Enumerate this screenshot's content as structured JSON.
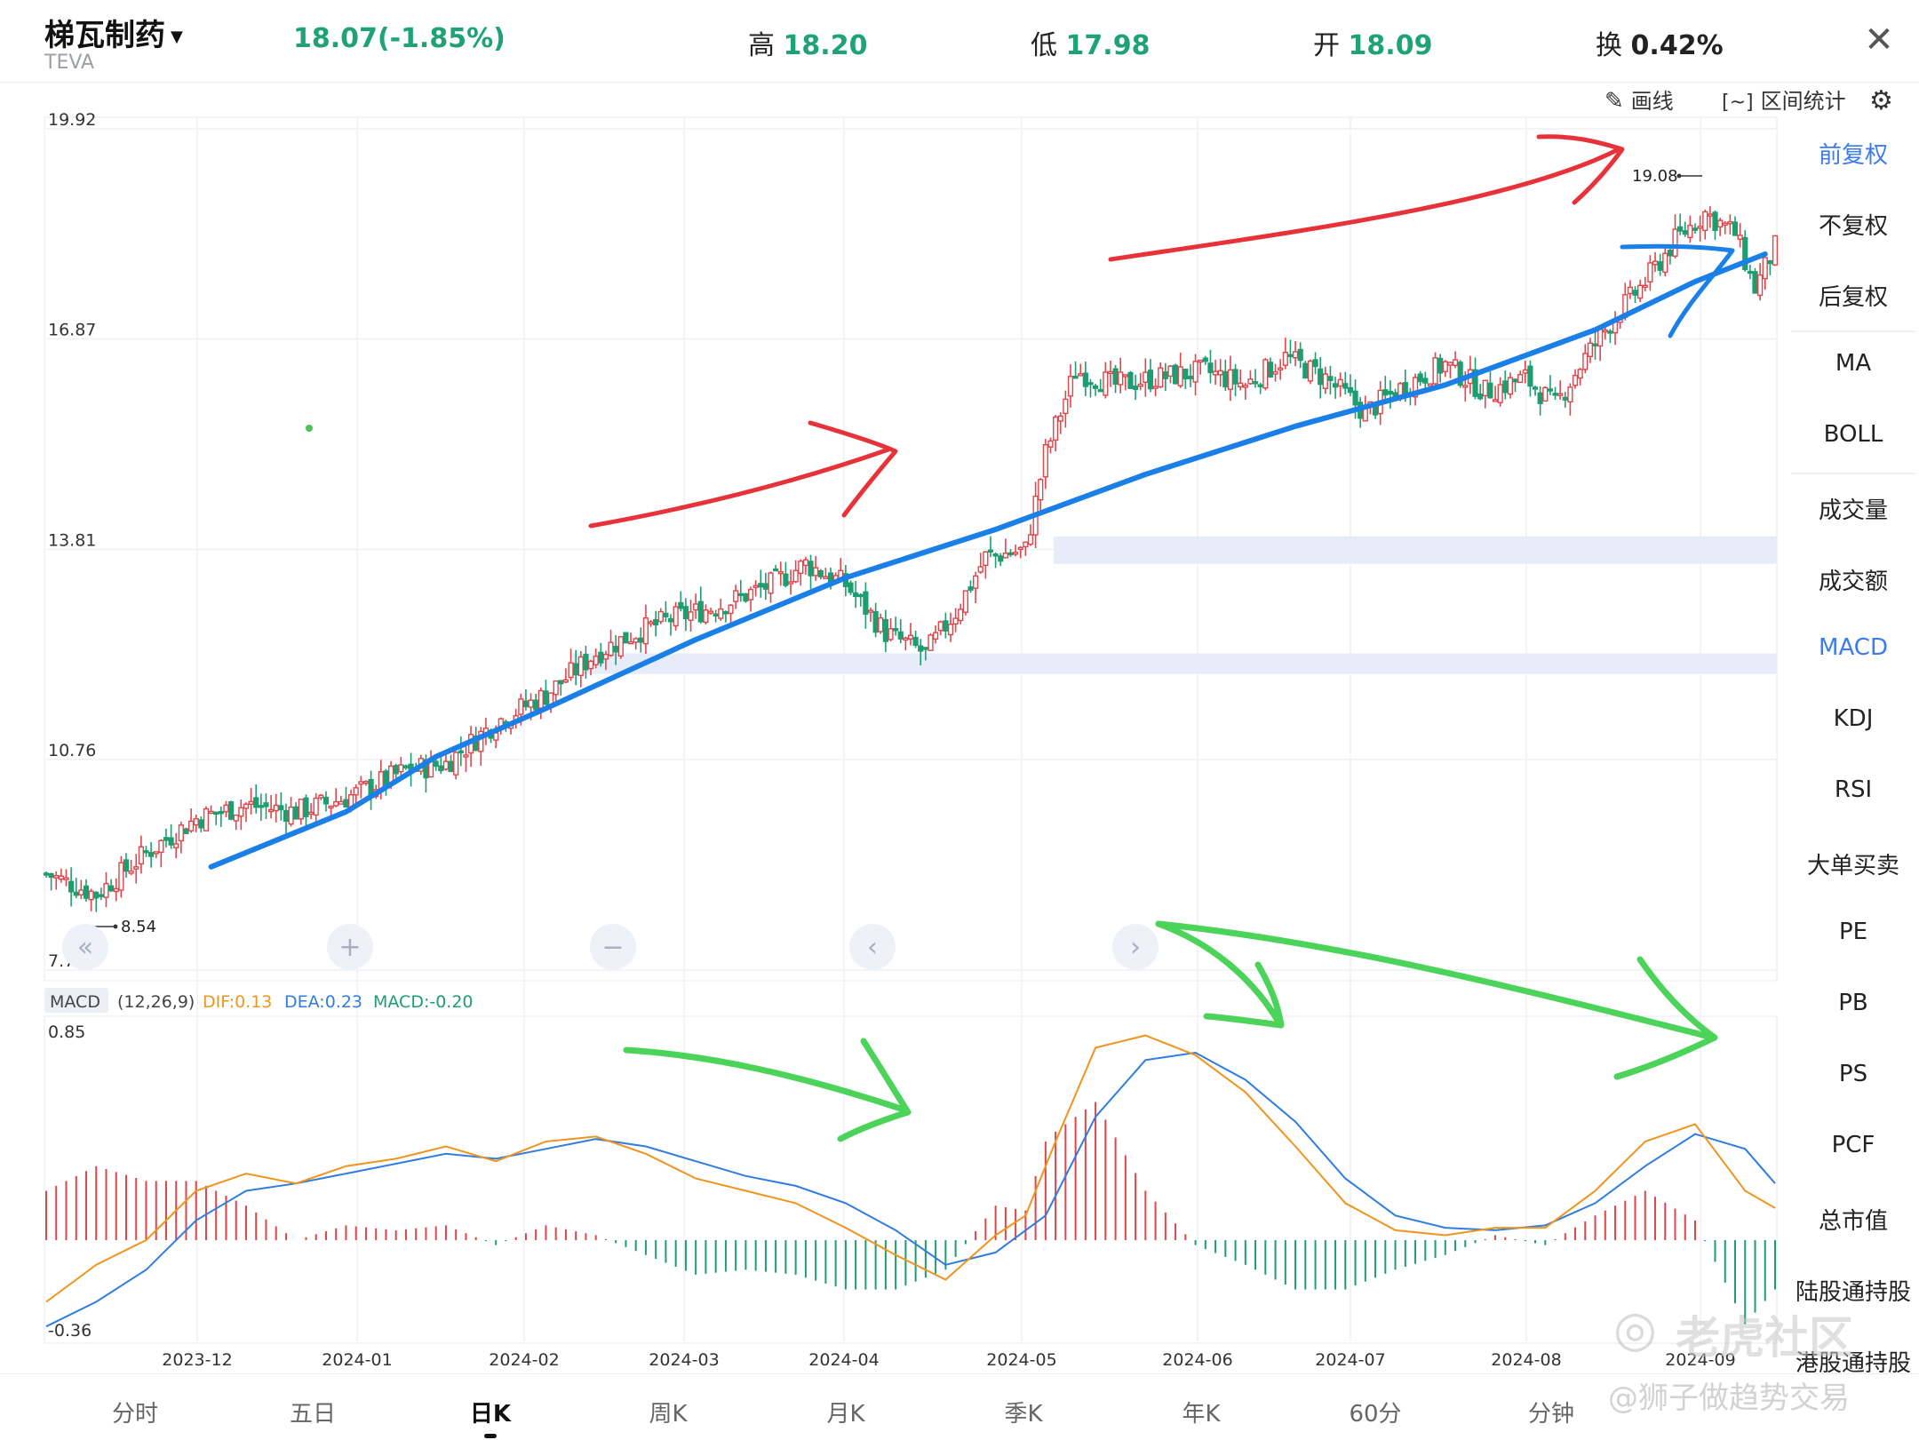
{
  "header": {
    "name": "梯瓦制药",
    "ticker": "TEVA",
    "price_change": "18.07(-1.85%)",
    "high_label": "高",
    "high_value": "18.20",
    "low_label": "低",
    "low_value": "17.98",
    "open_label": "开",
    "open_value": "18.09",
    "turnover_label": "换",
    "turnover_value": "0.42%"
  },
  "toolbar": {
    "draw_label": "画线",
    "range_stats_label": "区间统计"
  },
  "side_menu": {
    "items": [
      {
        "label": "前复权",
        "active": true
      },
      {
        "label": "不复权",
        "active": false
      },
      {
        "label": "后复权",
        "active": false
      },
      {
        "label": "MA",
        "active": false
      },
      {
        "label": "BOLL",
        "active": false
      },
      {
        "label": "成交量",
        "active": false
      },
      {
        "label": "成交额",
        "active": false
      },
      {
        "label": "MACD",
        "active": true
      },
      {
        "label": "KDJ",
        "active": false
      },
      {
        "label": "RSI",
        "active": false
      },
      {
        "label": "大单买卖",
        "active": false
      },
      {
        "label": "PE",
        "active": false
      },
      {
        "label": "PB",
        "active": false
      },
      {
        "label": "PS",
        "active": false
      },
      {
        "label": "PCF",
        "active": false
      },
      {
        "label": "总市值",
        "active": false
      },
      {
        "label": "陆股通持股",
        "active": false
      },
      {
        "label": "港股通持股",
        "active": false
      }
    ]
  },
  "bottom_tabs": [
    {
      "label": "分时",
      "active": false
    },
    {
      "label": "五日",
      "active": false
    },
    {
      "label": "日K",
      "active": true
    },
    {
      "label": "周K",
      "active": false
    },
    {
      "label": "月K",
      "active": false
    },
    {
      "label": "季K",
      "active": false
    },
    {
      "label": "年K",
      "active": false
    },
    {
      "label": "60分",
      "active": false
    },
    {
      "label": "分钟",
      "active": false
    }
  ],
  "watermark": {
    "brand": "老虎社区",
    "handle": "@狮子做趋势交易"
  },
  "colors": {
    "up": "#e0454b",
    "down": "#1e9e70",
    "dif": "#f0941e",
    "dea": "#2f7de1",
    "accent": "#3a7bf0",
    "trend_blue": "#1b7fe8",
    "annot_red": "#e8323a",
    "annot_green": "#4cd35a",
    "zone": "#e6ecf8"
  },
  "chart_data": [
    {
      "type": "candlestick",
      "title": "",
      "y_ticks": [
        "19.92",
        "16.87",
        "13.81",
        "10.76",
        "7.70"
      ],
      "ylim": [
        7.7,
        19.92
      ],
      "x_ticks": [
        "2023-12",
        "2024-01",
        "2024-02",
        "2024-03",
        "2024-04",
        "2024-05",
        "2024-06",
        "2024-07",
        "2024-08",
        "2024-09"
      ],
      "annotations": {
        "high_label": "19.08",
        "low_label": "8.54"
      },
      "control_icons": [
        "double-left",
        "plus",
        "minus",
        "left",
        "right"
      ],
      "support_zones": [
        [
          13.6,
          14.0
        ],
        [
          12.0,
          12.3
        ]
      ],
      "close_path": [
        [
          0,
          9.1
        ],
        [
          10,
          8.8
        ],
        [
          20,
          9.4
        ],
        [
          30,
          9.9
        ],
        [
          40,
          10.1
        ],
        [
          50,
          10.0
        ],
        [
          60,
          10.2
        ],
        [
          72,
          10.6
        ],
        [
          80,
          10.7
        ],
        [
          85,
          11.0
        ],
        [
          90,
          11.3
        ],
        [
          100,
          11.7
        ],
        [
          110,
          12.3
        ],
        [
          118,
          12.6
        ],
        [
          125,
          12.8
        ],
        [
          135,
          13.0
        ],
        [
          145,
          13.3
        ],
        [
          152,
          13.6
        ],
        [
          160,
          13.3
        ],
        [
          168,
          12.6
        ],
        [
          176,
          12.3
        ],
        [
          182,
          12.9
        ],
        [
          188,
          13.7
        ],
        [
          196,
          13.8
        ],
        [
          200,
          15.2
        ],
        [
          206,
          16.4
        ],
        [
          214,
          16.2
        ],
        [
          222,
          16.3
        ],
        [
          232,
          16.4
        ],
        [
          240,
          16.2
        ],
        [
          248,
          16.6
        ],
        [
          256,
          16.3
        ],
        [
          264,
          15.8
        ],
        [
          272,
          16.2
        ],
        [
          280,
          16.5
        ],
        [
          288,
          16.1
        ],
        [
          296,
          16.3
        ],
        [
          302,
          15.9
        ],
        [
          308,
          16.6
        ],
        [
          314,
          17.2
        ],
        [
          320,
          17.7
        ],
        [
          326,
          18.3
        ],
        [
          332,
          18.7
        ],
        [
          338,
          18.4
        ],
        [
          342,
          17.6
        ],
        [
          346,
          18.2
        ]
      ],
      "ma_line": [
        [
          33,
          9.2
        ],
        [
          60,
          10.0
        ],
        [
          78,
          10.8
        ],
        [
          100,
          11.5
        ],
        [
          130,
          12.5
        ],
        [
          160,
          13.4
        ],
        [
          190,
          14.1
        ],
        [
          220,
          14.9
        ],
        [
          250,
          15.6
        ],
        [
          280,
          16.2
        ],
        [
          310,
          17.0
        ],
        [
          330,
          17.7
        ],
        [
          344,
          18.1
        ]
      ]
    },
    {
      "type": "macd",
      "indicator_label": "MACD",
      "params": "(12,26,9)",
      "dif_label": "DIF:0.13",
      "dea_label": "DEA:0.23",
      "macd_label": "MACD:-0.20",
      "y_ticks": [
        "0.85",
        "-0.36"
      ],
      "ylim": [
        -0.36,
        0.85
      ],
      "dif": [
        [
          0,
          -0.25
        ],
        [
          10,
          -0.1
        ],
        [
          20,
          0.0
        ],
        [
          30,
          0.2
        ],
        [
          40,
          0.27
        ],
        [
          50,
          0.23
        ],
        [
          60,
          0.3
        ],
        [
          70,
          0.33
        ],
        [
          80,
          0.38
        ],
        [
          90,
          0.32
        ],
        [
          100,
          0.4
        ],
        [
          110,
          0.42
        ],
        [
          120,
          0.35
        ],
        [
          130,
          0.25
        ],
        [
          140,
          0.2
        ],
        [
          150,
          0.15
        ],
        [
          160,
          0.05
        ],
        [
          170,
          -0.06
        ],
        [
          180,
          -0.16
        ],
        [
          190,
          0.02
        ],
        [
          196,
          0.1
        ],
        [
          202,
          0.4
        ],
        [
          210,
          0.78
        ],
        [
          220,
          0.83
        ],
        [
          230,
          0.75
        ],
        [
          240,
          0.6
        ],
        [
          250,
          0.38
        ],
        [
          260,
          0.15
        ],
        [
          270,
          0.04
        ],
        [
          280,
          0.02
        ],
        [
          290,
          0.05
        ],
        [
          300,
          0.05
        ],
        [
          310,
          0.2
        ],
        [
          320,
          0.4
        ],
        [
          330,
          0.47
        ],
        [
          340,
          0.2
        ],
        [
          346,
          0.13
        ]
      ],
      "dea": [
        [
          0,
          -0.35
        ],
        [
          10,
          -0.25
        ],
        [
          20,
          -0.12
        ],
        [
          30,
          0.08
        ],
        [
          40,
          0.2
        ],
        [
          50,
          0.23
        ],
        [
          60,
          0.27
        ],
        [
          70,
          0.31
        ],
        [
          80,
          0.35
        ],
        [
          90,
          0.33
        ],
        [
          100,
          0.37
        ],
        [
          110,
          0.41
        ],
        [
          120,
          0.38
        ],
        [
          130,
          0.32
        ],
        [
          140,
          0.26
        ],
        [
          150,
          0.22
        ],
        [
          160,
          0.15
        ],
        [
          170,
          0.04
        ],
        [
          180,
          -0.1
        ],
        [
          190,
          -0.05
        ],
        [
          200,
          0.1
        ],
        [
          210,
          0.5
        ],
        [
          220,
          0.73
        ],
        [
          230,
          0.76
        ],
        [
          240,
          0.65
        ],
        [
          250,
          0.48
        ],
        [
          260,
          0.25
        ],
        [
          270,
          0.1
        ],
        [
          280,
          0.05
        ],
        [
          290,
          0.04
        ],
        [
          300,
          0.06
        ],
        [
          310,
          0.15
        ],
        [
          320,
          0.3
        ],
        [
          330,
          0.43
        ],
        [
          340,
          0.37
        ],
        [
          346,
          0.23
        ]
      ]
    }
  ]
}
